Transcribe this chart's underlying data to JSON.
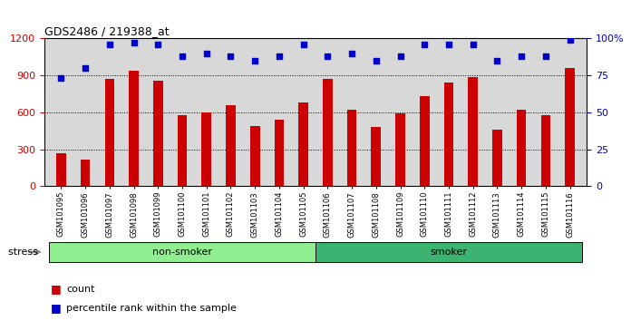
{
  "title": "GDS2486 / 219388_at",
  "samples": [
    "GSM101095",
    "GSM101096",
    "GSM101097",
    "GSM101098",
    "GSM101099",
    "GSM101100",
    "GSM101101",
    "GSM101102",
    "GSM101103",
    "GSM101104",
    "GSM101105",
    "GSM101106",
    "GSM101107",
    "GSM101108",
    "GSM101109",
    "GSM101110",
    "GSM101111",
    "GSM101112",
    "GSM101113",
    "GSM101114",
    "GSM101115",
    "GSM101116"
  ],
  "counts": [
    265,
    215,
    870,
    940,
    860,
    575,
    600,
    660,
    490,
    540,
    680,
    870,
    625,
    480,
    590,
    730,
    840,
    885,
    460,
    625,
    575,
    960
  ],
  "percentile_ranks": [
    73,
    80,
    96,
    97,
    96,
    88,
    90,
    88,
    85,
    88,
    96,
    88,
    90,
    85,
    88,
    96,
    96,
    96,
    85,
    88,
    88,
    99
  ],
  "groups": [
    {
      "label": "non-smoker",
      "start": 0,
      "end": 11,
      "color": "#90EE90"
    },
    {
      "label": "smoker",
      "start": 11,
      "end": 22,
      "color": "#3CB371"
    }
  ],
  "bar_color": "#CC0000",
  "dot_color": "#0000CC",
  "ylim_left": [
    0,
    1200
  ],
  "ylim_right": [
    0,
    100
  ],
  "yticks_left": [
    0,
    300,
    600,
    900,
    1200
  ],
  "yticks_right": [
    0,
    25,
    50,
    75,
    100
  ],
  "stress_label": "stress",
  "legend_count": "count",
  "legend_percentile": "percentile rank within the sample",
  "background_color": "#FFFFFF",
  "plot_bg_color": "#D8D8D8"
}
